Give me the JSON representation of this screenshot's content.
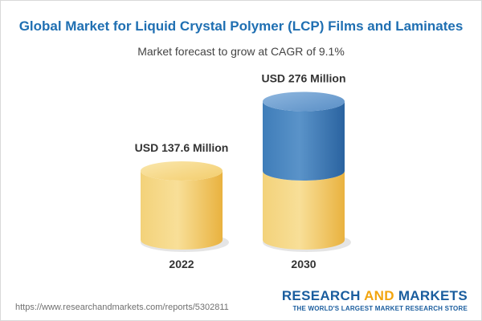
{
  "header": {
    "title": "Global Market for Liquid Crystal Polymer (LCP) Films and Laminates",
    "subtitle": "Market forecast to grow at CAGR of 9.1%"
  },
  "chart_data": {
    "type": "bar",
    "categories": [
      "2022",
      "2030"
    ],
    "values": [
      137.6,
      276
    ],
    "data_labels": [
      "USD 137.6 Million",
      "USD 276 Million"
    ],
    "unit": "USD Million",
    "cagr_percent": 9.1,
    "base_segment_value": 137.6,
    "colors": {
      "base": "#f2c35a",
      "growth": "#3b78b5"
    }
  },
  "footer": {
    "url": "https://www.researchandmarkets.com/reports/5302811",
    "logo_words": [
      "RESEARCH",
      "AND",
      "MARKETS"
    ],
    "tagline": "THE WORLD'S LARGEST MARKET RESEARCH STORE"
  }
}
